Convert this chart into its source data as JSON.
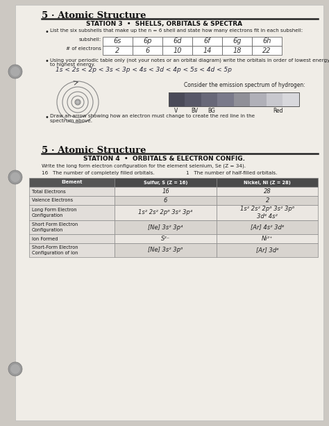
{
  "title1": "5 · Atomic Structure",
  "station3_header": "STATION 3  •  SHELLS, ORBITALS & SPECTRA",
  "station3_bullet1": "List the six subshells that make up the n = 6 shell and state how many electrons fit in each subshell:",
  "subshells": [
    "6s",
    "6p",
    "6d",
    "6f",
    "6g",
    "6h"
  ],
  "electrons": [
    "2",
    "6",
    "10",
    "14",
    "18",
    "22"
  ],
  "station3_bullet2": "Using your periodic table only (not your notes or an orbital diagram) write the orbitals in order of lowest energy\nto highest energy.",
  "orbital_order": "1s < 2s < 2p < 3s < 3p < 4s < 3d < 4p < 5s < 4d < 5p",
  "spectrum_label": "Consider the emission spectrum of hydrogen:",
  "draw_arrow_bullet": "Draw an arrow showing how an electron must change to create the red line in the\nspectrum above.",
  "title2": "5 · Atomic Structure",
  "station4_header": "STATION 4  •  ORBITALS & ELECTRON CONFIG.",
  "station4_intro": "Write the long form electron configuration for the element selenium, Se (Z = 34).",
  "filled_orbitals_label": "16   The number of completely filled orbitals.",
  "half_filled_label": "1   The number of half-filled orbitals.",
  "table_header": [
    "Element",
    "Sulfur, S (Z = 16)",
    "Nickel, Ni (Z = 28)"
  ],
  "table_rows": [
    [
      "Total Electrons",
      "16",
      "28"
    ],
    [
      "Valence Electrons",
      "6",
      "2"
    ],
    [
      "Long Form Electron\nConfiguration",
      "1s² 2s² 2p⁶ 3s² 3p⁴",
      "1s² 2s² 2p⁶ 3s² 3p⁶\n3d⁸ 4s²"
    ],
    [
      "Short Form Electron\nConfiguration",
      "[Ne] 3s² 3p⁴",
      "[Ar] 4s² 3d⁸"
    ],
    [
      "Ion Formed",
      "S²⁻",
      "Ni²⁺"
    ],
    [
      "Short-Form Electron\nConfiguration of Ion",
      "[Ne] 3s² 3p⁶",
      "[Ar] 3d⁸"
    ]
  ],
  "spectrum_bands": [
    "#4a4a58",
    "#585868",
    "#686878",
    "#7a7a8a",
    "#909098",
    "#b0b0b8",
    "#c8c8ce",
    "#d8d8dc"
  ],
  "spectrum_labels": [
    [
      "V",
      0.04
    ],
    [
      "BV",
      0.17
    ],
    [
      "BG",
      0.3
    ],
    [
      "Red",
      0.8
    ]
  ]
}
